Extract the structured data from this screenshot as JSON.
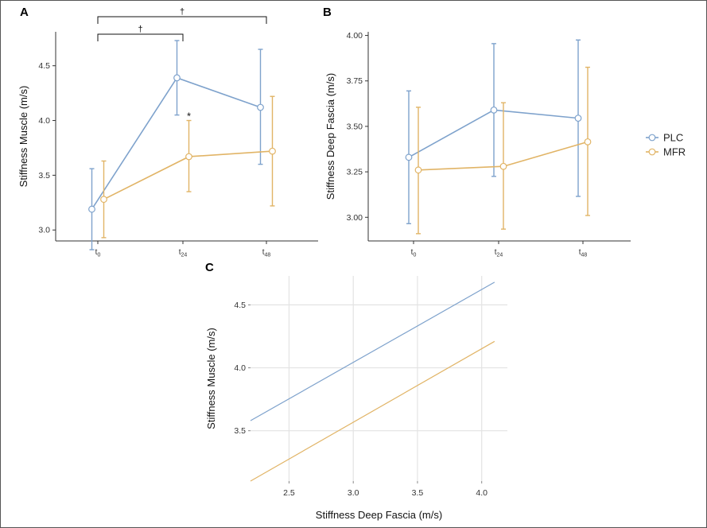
{
  "colors": {
    "PLC": "#7ea2cc",
    "MFR": "#e1b466",
    "grid": "#e3e3e3",
    "axis": "#333333"
  },
  "legend": {
    "position": "right",
    "items": [
      {
        "key": "PLC",
        "label": "PLC"
      },
      {
        "key": "MFR",
        "label": "MFR"
      }
    ]
  },
  "chart_data": [
    {
      "panel": "A",
      "type": "line",
      "ylabel": "Stiffness Muscle (m/s)",
      "xlabel": "",
      "categories": [
        {
          "base": "t",
          "sub": "0"
        },
        {
          "base": "t",
          "sub": "24"
        },
        {
          "base": "t",
          "sub": "48"
        }
      ],
      "yticks": [
        "3.0",
        "3.5",
        "4.0",
        "4.5"
      ],
      "ylim": [
        2.9,
        4.81
      ],
      "grid": false,
      "series": [
        {
          "name": "PLC",
          "values": [
            3.19,
            4.39,
            4.12
          ],
          "err_low": [
            2.82,
            4.05,
            3.6
          ],
          "err_high": [
            3.56,
            4.73,
            4.65
          ]
        },
        {
          "name": "MFR",
          "values": [
            3.28,
            3.67,
            3.72
          ],
          "err_low": [
            2.93,
            3.35,
            3.22
          ],
          "err_high": [
            3.63,
            4.0,
            4.22
          ]
        }
      ],
      "annotations": [
        {
          "type": "bracket",
          "from": 0,
          "to": 2,
          "label": "†"
        },
        {
          "type": "bracket",
          "from": 0,
          "to": 1,
          "label": "†"
        },
        {
          "type": "marker",
          "category": 1,
          "series": "MFR",
          "label": "*"
        }
      ]
    },
    {
      "panel": "B",
      "type": "line",
      "ylabel": "Stiffness Deep Fascia (m/s)",
      "xlabel": "",
      "categories": [
        {
          "base": "t",
          "sub": "0"
        },
        {
          "base": "t",
          "sub": "24"
        },
        {
          "base": "t",
          "sub": "48"
        }
      ],
      "yticks": [
        "3.00",
        "3.25",
        "3.50",
        "3.75",
        "4.00"
      ],
      "ylim": [
        2.87,
        4.02
      ],
      "grid": false,
      "series": [
        {
          "name": "PLC",
          "values": [
            3.33,
            3.59,
            3.545
          ],
          "err_low": [
            2.965,
            3.225,
            3.115
          ],
          "err_high": [
            3.695,
            3.955,
            3.975
          ]
        },
        {
          "name": "MFR",
          "values": [
            3.26,
            3.28,
            3.415
          ],
          "err_low": [
            2.91,
            2.935,
            3.01
          ],
          "err_high": [
            3.605,
            3.63,
            3.825
          ]
        }
      ],
      "annotations": []
    },
    {
      "panel": "C",
      "type": "line",
      "xlabel": "Stiffness Deep Fascia (m/s)",
      "ylabel": "Stiffness Muscle (m/s)",
      "xticks": [
        "2.5",
        "3.0",
        "3.5",
        "4.0"
      ],
      "yticks": [
        "3.5",
        "4.0",
        "4.5"
      ],
      "xlim": [
        2.2,
        4.2
      ],
      "ylim": [
        3.1,
        4.73
      ],
      "grid": true,
      "series": [
        {
          "name": "PLC",
          "x": [
            2.2,
            4.1
          ],
          "y": [
            3.58,
            4.68
          ]
        },
        {
          "name": "MFR",
          "x": [
            2.2,
            4.1
          ],
          "y": [
            3.1,
            4.21
          ]
        }
      ]
    }
  ]
}
